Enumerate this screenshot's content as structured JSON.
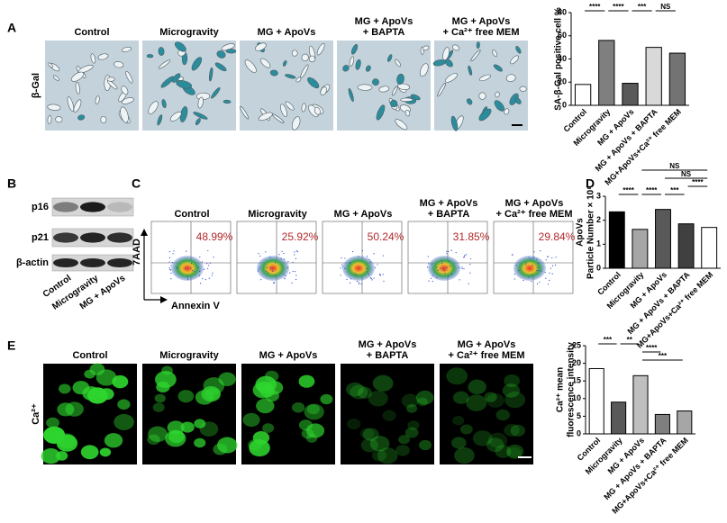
{
  "panel_labels": [
    "A",
    "B",
    "C",
    "D",
    "E"
  ],
  "panel_a": {
    "row_label": "β-Gal",
    "titles": [
      "Control",
      "Microgravity",
      "MG + ApoVs",
      [
        "MG + ApoVs",
        "+ BAPTA"
      ],
      [
        "MG + ApoVs",
        "+ Ca²⁺ free MEM"
      ]
    ]
  },
  "panel_b": {
    "proteins": [
      "p16",
      "p21",
      "β-actin"
    ],
    "lanes": [
      "Control",
      "Microgravity",
      "MG + ApoVs"
    ]
  },
  "panel_c": {
    "titles": [
      "Control",
      "Microgravity",
      "MG + ApoVs",
      [
        "MG + ApoVs",
        "+ BAPTA"
      ],
      [
        "MG + ApoVs",
        "+ Ca²⁺ free MEM"
      ]
    ],
    "y_axis": "7AAD",
    "x_axis": "Annexin V",
    "percentages": [
      "48.99%",
      "25.92%",
      "50.24%",
      "31.85%",
      "29.84%"
    ]
  },
  "panel_e": {
    "row_label": "Ca²⁺",
    "titles": [
      "Control",
      "Microgravity",
      "MG + ApoVs",
      [
        "MG + ApoVs",
        "+ BAPTA"
      ],
      [
        "MG + ApoVs",
        "+ Ca²⁺ free MEM"
      ]
    ]
  },
  "chart_data": [
    {
      "type": "bar",
      "ylabel": "SA-β-Gal positive cell %",
      "categories": [
        "Control",
        "Microgravity",
        "MG + ApoVs",
        "MG + ApoVs + BAPTA",
        "MG+ApoVs+Ca²⁺ free MEM"
      ],
      "values": [
        18,
        56,
        19,
        50,
        45
      ],
      "colors": [
        "#ffffff",
        "#7f7f7f",
        "#595959",
        "#d9d9d9",
        "#737373"
      ],
      "ylim": [
        0,
        80
      ],
      "yticks": [
        0,
        20,
        40,
        60,
        80
      ],
      "annotations": [
        "****",
        "****",
        "***",
        "NS"
      ]
    },
    {
      "type": "bar",
      "ylabel": [
        "ApoVs",
        "Particle Number × 10⁸"
      ],
      "categories": [
        "Control",
        "Microgravity",
        "MG + ApoVs",
        "MG + ApoVs + BAPTA",
        "MG+ApoVs+Ca²⁺ free MEM"
      ],
      "values": [
        2.35,
        1.62,
        2.45,
        1.85,
        1.7
      ],
      "colors": [
        "#000000",
        "#a6a6a6",
        "#595959",
        "#404040",
        "#ffffff"
      ],
      "ylim": [
        0,
        3
      ],
      "yticks": [
        0,
        1,
        2,
        3
      ],
      "annotations": [
        "****",
        "****",
        "***",
        "****",
        "NS",
        "NS"
      ]
    },
    {
      "type": "bar",
      "ylabel": [
        "Ca²⁺ mean",
        "fluorescence intensity"
      ],
      "categories": [
        "Control",
        "Microgravity",
        "MG + ApoVs",
        "MG + ApoVs + BAPTA",
        "MG+ApoVs+Ca²⁺ free MEM"
      ],
      "values": [
        18.5,
        9,
        16.5,
        5.5,
        6.5
      ],
      "colors": [
        "#ffffff",
        "#595959",
        "#bfbfbf",
        "#7f7f7f",
        "#a6a6a6"
      ],
      "ylim": [
        0,
        25
      ],
      "yticks": [
        0,
        5,
        10,
        15,
        20,
        25
      ],
      "annotations": [
        "***",
        "**",
        "****",
        "***"
      ]
    }
  ]
}
